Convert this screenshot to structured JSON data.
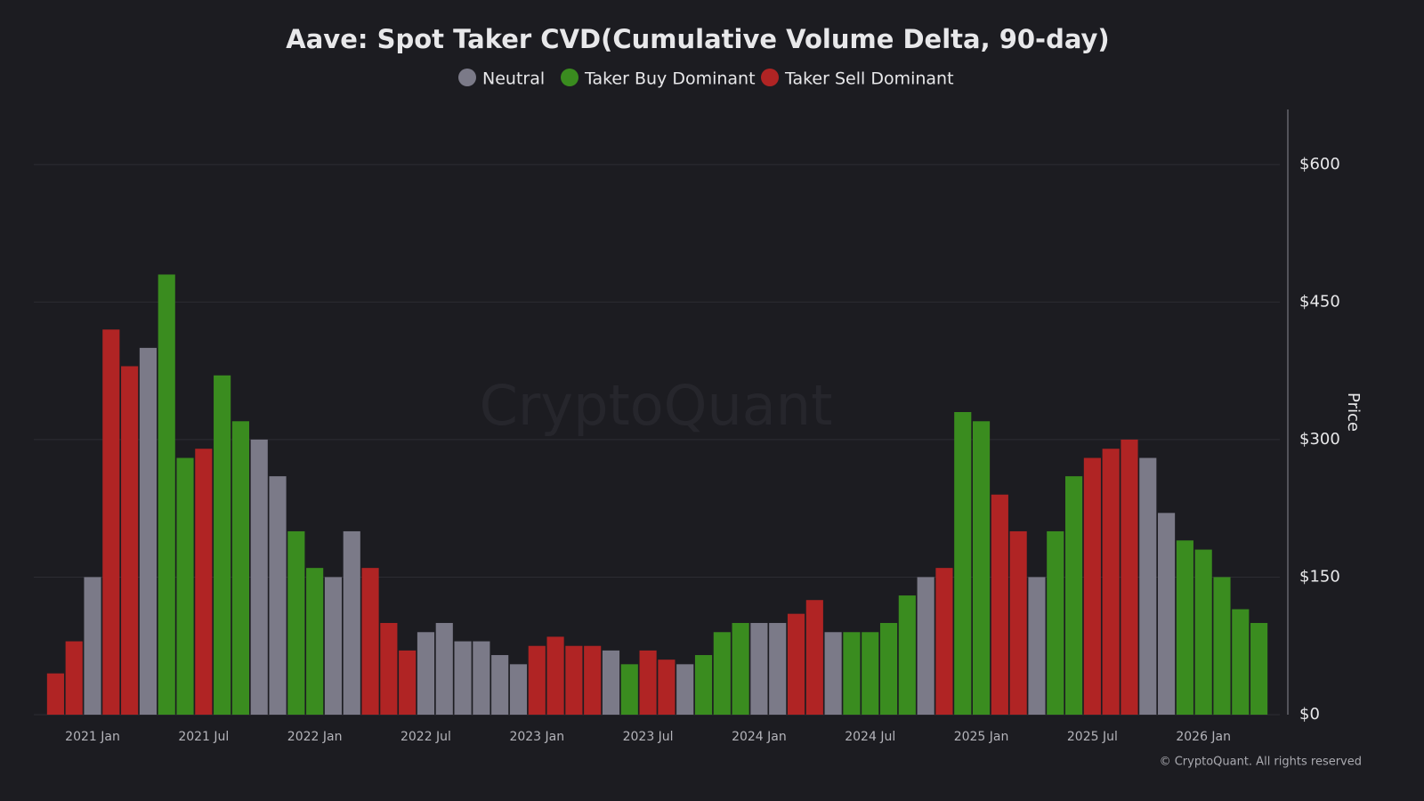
{
  "chart_data": {
    "type": "bar",
    "title": "Aave: Spot Taker CVD(Cumulative Volume Delta, 90-day)",
    "y_label": "Price",
    "watermark": "CryptoQuant",
    "footer": "© CryptoQuant. All rights reserved",
    "categories": [
      null,
      null,
      "2021 Jan",
      null,
      null,
      null,
      null,
      null,
      "2021 Jul",
      null,
      null,
      null,
      null,
      null,
      "2022 Jan",
      null,
      null,
      null,
      null,
      null,
      "2022 Jul",
      null,
      null,
      null,
      null,
      null,
      "2023 Jan",
      null,
      null,
      null,
      null,
      null,
      "2023 Jul",
      null,
      null,
      null,
      null,
      null,
      "2024 Jan",
      null,
      null,
      null,
      null,
      null,
      "2024 Jul",
      null,
      null,
      null,
      null,
      null,
      "2025 Jan",
      null,
      null,
      null,
      null,
      null,
      "2025 Jul",
      null,
      null,
      null,
      null,
      null,
      "2026 Jan",
      null,
      null,
      null
    ],
    "series": [
      {
        "name": "Neutral",
        "color": "#7b7a88",
        "values": [
          null,
          null,
          150,
          null,
          null,
          400,
          null,
          null,
          null,
          null,
          null,
          300,
          260,
          null,
          null,
          150,
          200,
          null,
          null,
          null,
          90,
          100,
          80,
          80,
          65,
          55,
          null,
          null,
          null,
          null,
          70,
          null,
          null,
          null,
          55,
          null,
          null,
          null,
          100,
          100,
          null,
          null,
          90,
          null,
          null,
          null,
          null,
          150,
          null,
          null,
          null,
          null,
          null,
          150,
          null,
          null,
          null,
          null,
          null,
          280,
          220,
          null,
          null,
          null,
          null,
          null
        ]
      },
      {
        "name": "Taker Buy Dominant",
        "color": "#3a8c1f",
        "values": [
          null,
          null,
          null,
          null,
          null,
          null,
          480,
          280,
          null,
          370,
          320,
          null,
          null,
          200,
          160,
          null,
          null,
          null,
          null,
          null,
          null,
          null,
          null,
          null,
          null,
          null,
          null,
          null,
          null,
          null,
          null,
          55,
          null,
          null,
          null,
          65,
          90,
          100,
          null,
          null,
          null,
          null,
          null,
          90,
          90,
          100,
          130,
          null,
          null,
          330,
          320,
          null,
          null,
          null,
          200,
          260,
          null,
          null,
          null,
          null,
          null,
          190,
          180,
          150,
          115,
          100
        ]
      },
      {
        "name": "Taker Sell Dominant",
        "color": "#b02424",
        "values": [
          45,
          80,
          null,
          420,
          380,
          null,
          null,
          null,
          290,
          null,
          null,
          null,
          null,
          null,
          null,
          null,
          null,
          160,
          100,
          70,
          null,
          null,
          null,
          null,
          null,
          null,
          75,
          85,
          75,
          75,
          null,
          null,
          70,
          60,
          null,
          null,
          null,
          null,
          null,
          null,
          110,
          125,
          null,
          null,
          null,
          null,
          null,
          null,
          160,
          null,
          null,
          240,
          200,
          null,
          null,
          null,
          280,
          290,
          300,
          null,
          null,
          null,
          null,
          null,
          null,
          null
        ]
      }
    ],
    "ylim": [
      0,
      660
    ],
    "yticks": [
      {
        "value": 0,
        "label": "$0"
      },
      {
        "value": 150,
        "label": "$150"
      },
      {
        "value": 300,
        "label": "$300"
      },
      {
        "value": 450,
        "label": "$450"
      },
      {
        "value": 600,
        "label": "$600"
      }
    ],
    "grid": true
  }
}
